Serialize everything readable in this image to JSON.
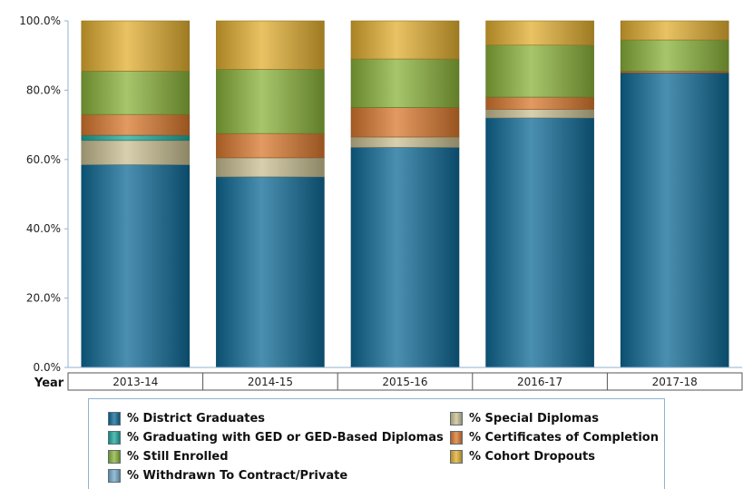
{
  "chart_data": {
    "type": "bar",
    "stacked": true,
    "categories": [
      "2013-14",
      "2014-15",
      "2015-16",
      "2016-17",
      "2017-18"
    ],
    "xlabel": "Year",
    "ylabel": "",
    "ylim": [
      0,
      100
    ],
    "yticks": [
      "0.0%",
      "20.0%",
      "40.0%",
      "60.0%",
      "80.0%",
      "100.0%"
    ],
    "grid": false,
    "legend_position": "bottom",
    "series": [
      {
        "name": "% District Graduates",
        "color": "#0f6a96",
        "values": [
          58.5,
          55.0,
          63.5,
          72.0,
          85.0
        ]
      },
      {
        "name": "% Special Diplomas",
        "color": "#c9bf91",
        "values": [
          7.0,
          5.5,
          3.0,
          2.5,
          0.0
        ]
      },
      {
        "name": "% Graduating with GED or GED-Based Diplomas",
        "color": "#1fa89a",
        "values": [
          1.5,
          0.0,
          0.0,
          0.0,
          0.0
        ]
      },
      {
        "name": "% Certificates of Completion",
        "color": "#d9782e",
        "values": [
          6.0,
          7.0,
          8.5,
          3.5,
          0.5
        ]
      },
      {
        "name": "% Still Enrolled",
        "color": "#8ab33a",
        "values": [
          12.5,
          18.5,
          14.0,
          15.0,
          9.0
        ]
      },
      {
        "name": "% Withdrawn To Contract/Private",
        "color": "#74a9c9",
        "values": [
          0.0,
          0.0,
          0.0,
          0.0,
          0.0
        ]
      },
      {
        "name": "% Cohort Dropouts",
        "color": "#e2ae30",
        "values": [
          14.5,
          14.0,
          11.0,
          7.0,
          5.5
        ]
      }
    ]
  }
}
